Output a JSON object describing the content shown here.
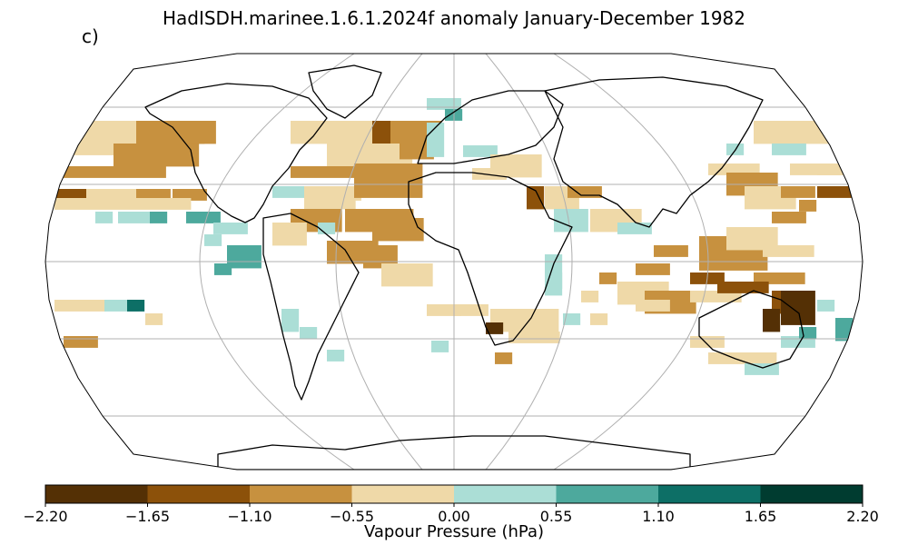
{
  "figure": {
    "title": "HadISDH.marinee.1.6.1.2024f anomaly January-December 1982",
    "panel_label": "c)"
  },
  "map": {
    "projection": "Robinson",
    "gridlines": true,
    "coastlines": true
  },
  "colorbar": {
    "label": "Vapour Pressure (hPa)",
    "ticks": [
      "−2.20",
      "−1.65",
      "−1.10",
      "−0.55",
      "0.00",
      "0.55",
      "1.10",
      "1.65",
      "2.20"
    ],
    "bins": [
      {
        "min": -2.2,
        "max": -1.65,
        "color": "#543005"
      },
      {
        "min": -1.65,
        "max": -1.1,
        "color": "#8c510a"
      },
      {
        "min": -1.1,
        "max": -0.55,
        "color": "#c7913f"
      },
      {
        "min": -0.55,
        "max": 0.0,
        "color": "#efd9a8"
      },
      {
        "min": 0.0,
        "max": 0.55,
        "color": "#abded6"
      },
      {
        "min": 0.55,
        "max": 1.1,
        "color": "#4da99d"
      },
      {
        "min": 1.1,
        "max": 1.65,
        "color": "#0d6f66"
      },
      {
        "min": 1.65,
        "max": 2.2,
        "color": "#003c30"
      }
    ]
  }
}
